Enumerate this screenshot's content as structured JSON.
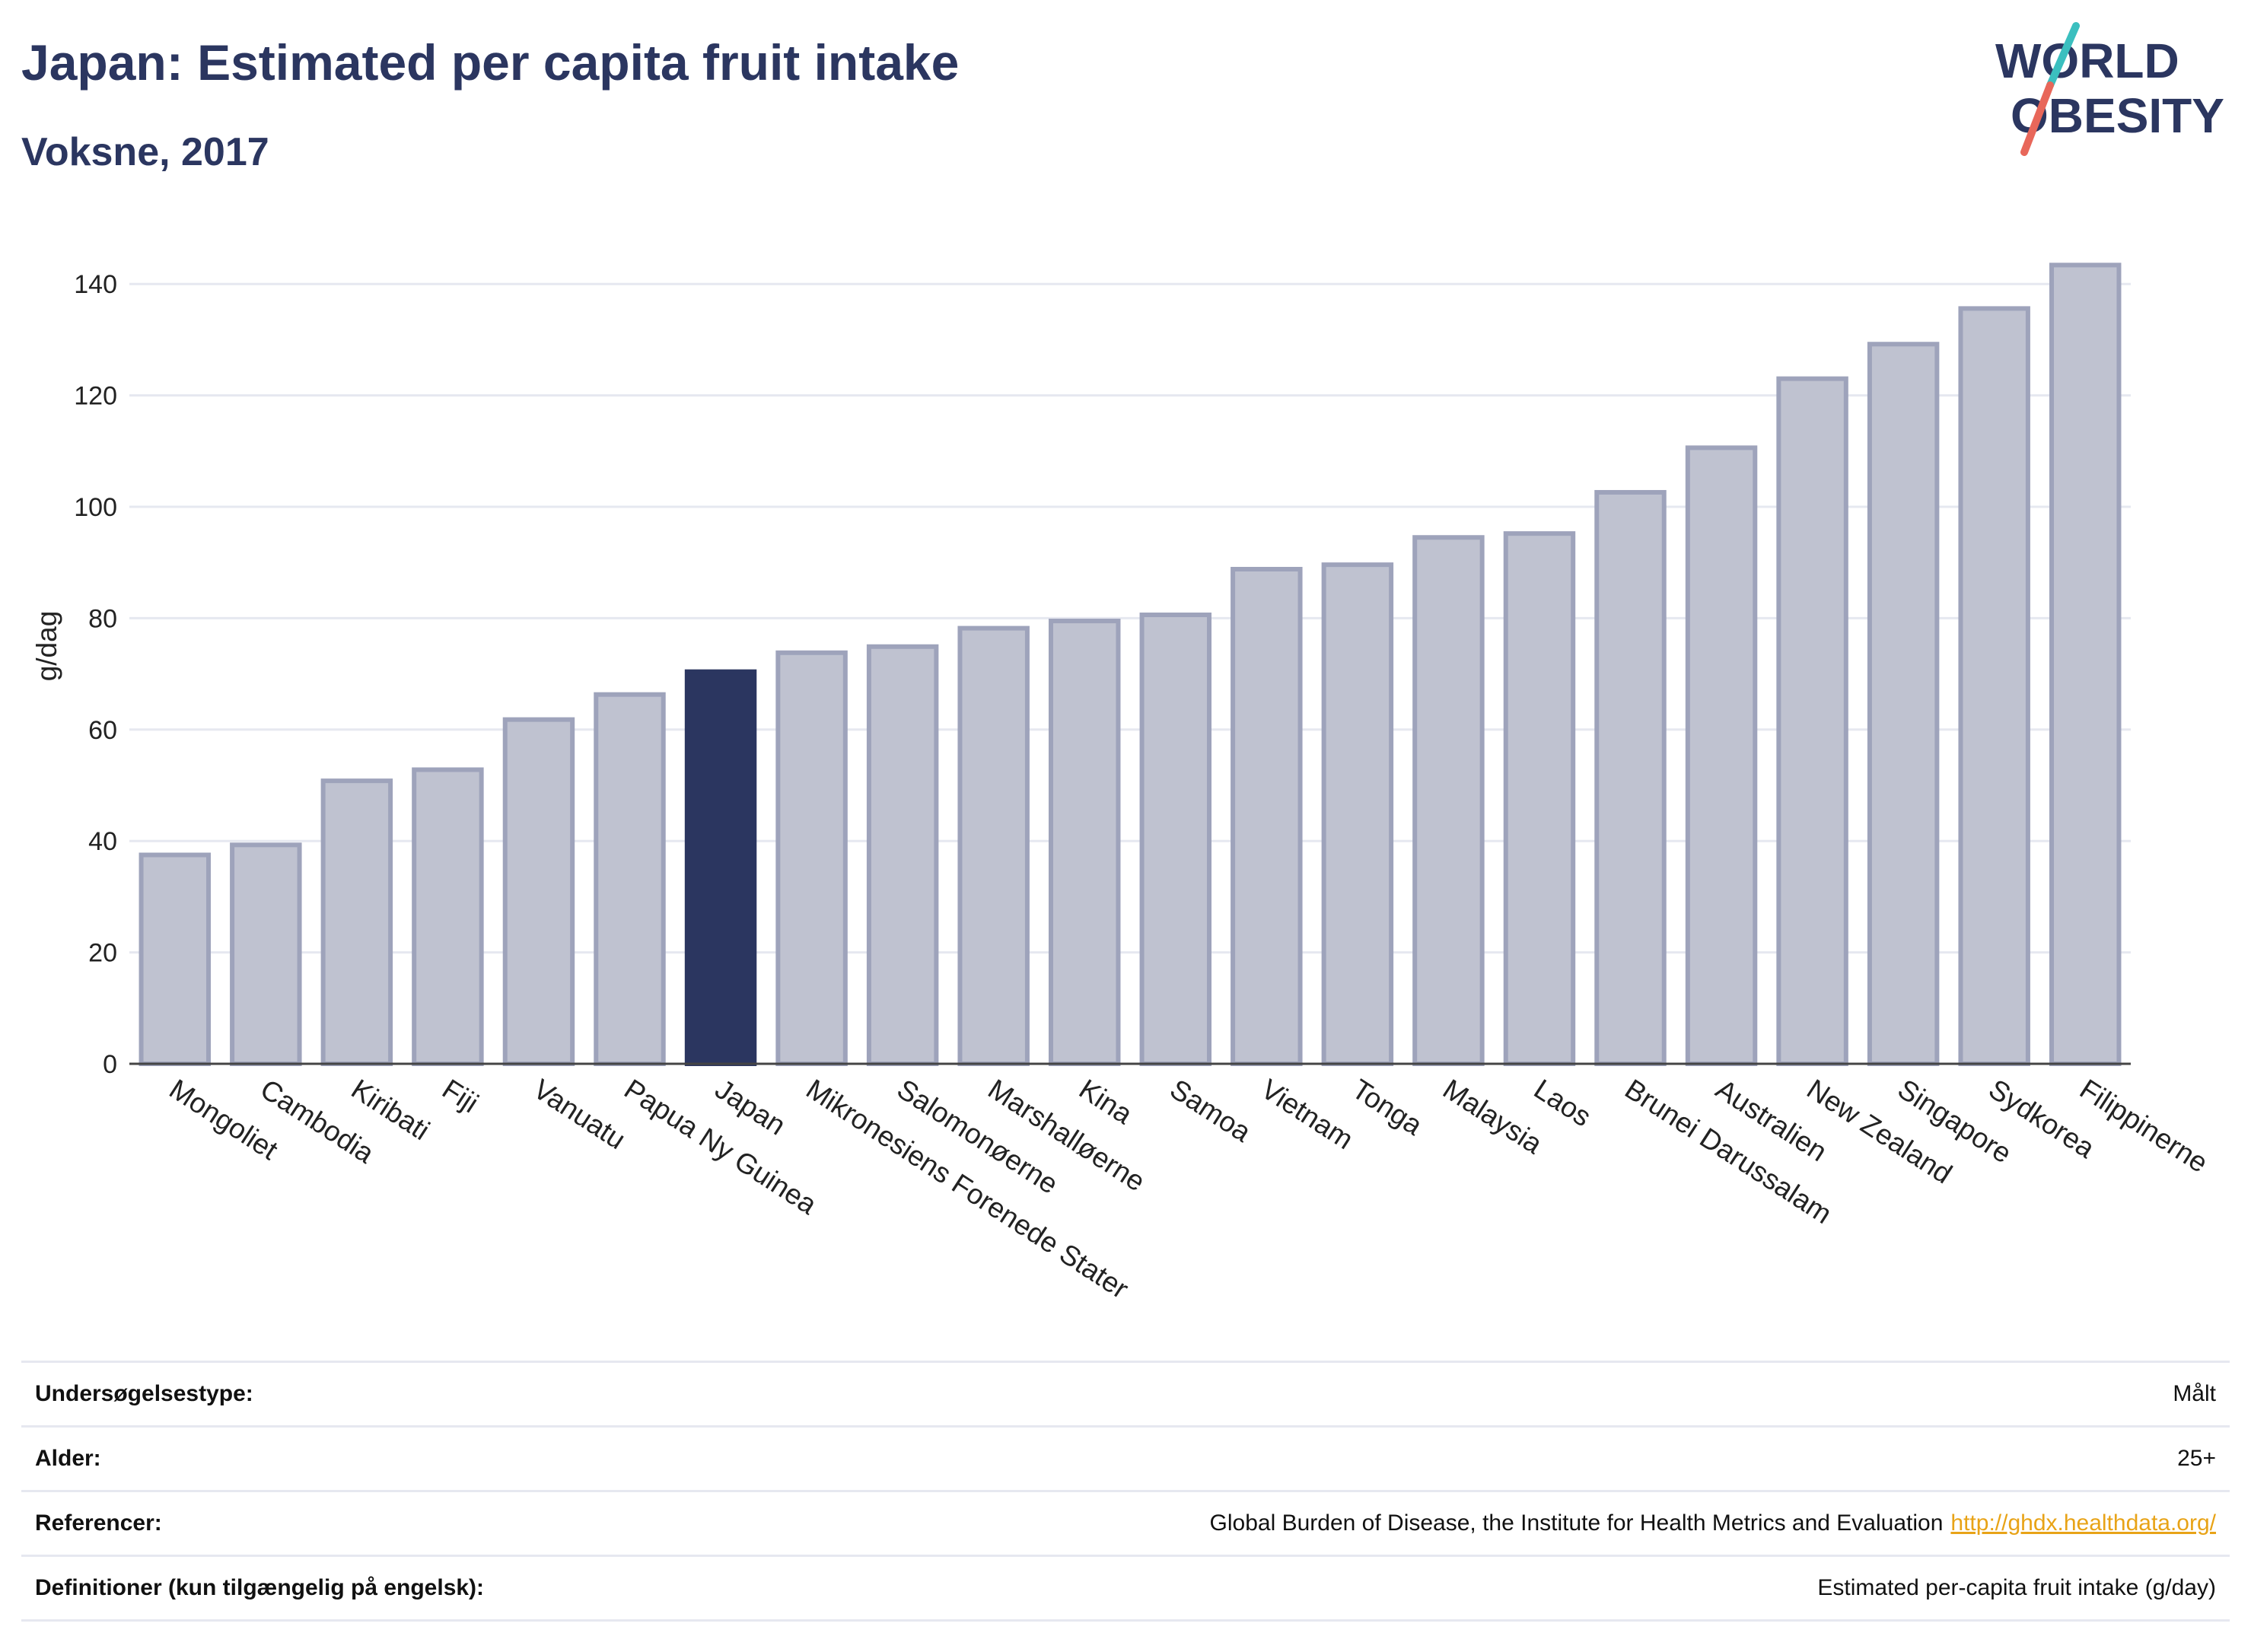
{
  "header": {
    "title": "Japan: Estimated per capita fruit intake",
    "subtitle": "Voksne, 2017"
  },
  "logo": {
    "line1": "WORLD",
    "line2": "OBESITY",
    "colors": {
      "text": "#2b3660",
      "slash_top": "#3bbfbf",
      "slash_bottom": "#e8675a"
    }
  },
  "colors": {
    "bar": "#bfc2d0",
    "bar_stroke": "#9ea3bb",
    "highlight": "#2b3660",
    "grid": "#e6e8f0",
    "axis": "#444444"
  },
  "chart_data": {
    "type": "bar",
    "title": "Japan: Estimated per capita fruit intake",
    "subtitle": "Voksne, 2017",
    "xlabel": "",
    "ylabel": "g/dag",
    "ylim": [
      0,
      150
    ],
    "yticks": [
      0,
      20,
      40,
      60,
      80,
      100,
      120,
      140
    ],
    "grid": true,
    "highlight": "Japan",
    "categories": [
      "Mongoliet",
      "Cambodia",
      "Kiribati",
      "Fiji",
      "Vanuatu",
      "Papua Ny Guinea",
      "Japan",
      "Mikronesiens Forenede Stater",
      "Salomonøerne",
      "Marshalløerne",
      "Kina",
      "Samoa",
      "Vietnam",
      "Tonga",
      "Malaysia",
      "Laos",
      "Brunei Darussalam",
      "Australien",
      "New Zealand",
      "Singapore",
      "Sydkorea",
      "Filippinerne"
    ],
    "values": [
      37.5,
      39.3,
      50.8,
      52.8,
      61.8,
      66.3,
      70.4,
      73.8,
      74.9,
      78.2,
      79.5,
      80.6,
      88.8,
      89.6,
      94.5,
      95.2,
      102.6,
      110.6,
      123.0,
      129.2,
      135.6,
      143.4
    ]
  },
  "info": {
    "rows": [
      {
        "key": "Undersøgelsestype:",
        "value": "Målt",
        "link": ""
      },
      {
        "key": "Alder:",
        "value": "25+",
        "link": ""
      },
      {
        "key": "Referencer:",
        "value": "Global Burden of Disease, the Institute for Health Metrics and Evaluation",
        "link": "http://ghdx.healthdata.org/"
      },
      {
        "key": "Definitioner (kun tilgængelig på engelsk):",
        "value": "Estimated per-capita fruit intake (g/day)",
        "link": ""
      }
    ]
  }
}
